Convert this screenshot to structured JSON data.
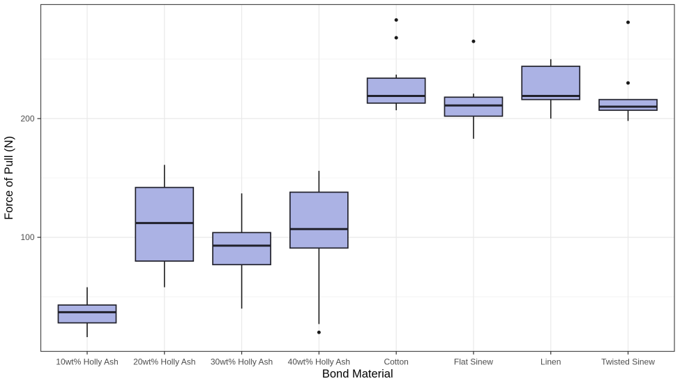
{
  "chart_data": {
    "type": "boxplot",
    "title": "",
    "xlabel": "Bond Material",
    "ylabel": "Force of Pull (N)",
    "categories": [
      "10wt% Holly Ash",
      "20wt% Holly Ash",
      "30wt% Holly Ash",
      "40wt% Holly Ash",
      "Cotton",
      "Flat Sinew",
      "Linen",
      "Twisted Sinew"
    ],
    "y_axis": {
      "major_ticks": [
        100,
        200
      ],
      "minor_gridlines": [
        50,
        150,
        250
      ],
      "range": [
        4,
        296
      ]
    },
    "boxes": [
      {
        "category": "10wt% Holly Ash",
        "whisker_low": 16,
        "q1": 28,
        "median": 37,
        "q3": 43,
        "whisker_high": 58,
        "outliers": []
      },
      {
        "category": "20wt% Holly Ash",
        "whisker_low": 58,
        "q1": 80,
        "median": 112,
        "q3": 142,
        "whisker_high": 161,
        "outliers": []
      },
      {
        "category": "30wt% Holly Ash",
        "whisker_low": 40,
        "q1": 77,
        "median": 93,
        "q3": 104,
        "whisker_high": 137,
        "outliers": []
      },
      {
        "category": "40wt% Holly Ash",
        "whisker_low": 27,
        "q1": 91,
        "median": 107,
        "q3": 138,
        "whisker_high": 156,
        "outliers": [
          20
        ]
      },
      {
        "category": "Cotton",
        "whisker_low": 207,
        "q1": 213,
        "median": 219,
        "q3": 234,
        "whisker_high": 237,
        "outliers": [
          268,
          283
        ]
      },
      {
        "category": "Flat Sinew",
        "whisker_low": 183,
        "q1": 202,
        "median": 211,
        "q3": 218,
        "whisker_high": 221,
        "outliers": [
          265
        ]
      },
      {
        "category": "Linen",
        "whisker_low": 200,
        "q1": 216,
        "median": 219,
        "q3": 244,
        "whisker_high": 250,
        "outliers": []
      },
      {
        "category": "Twisted Sinew",
        "whisker_low": 198,
        "q1": 207,
        "median": 210,
        "q3": 216,
        "whisker_high": 216,
        "outliers": [
          230,
          281
        ]
      }
    ],
    "style": {
      "box_fill": "#abb2e4",
      "box_stroke": "#21212b",
      "median_color": "#21212b",
      "whisker_color": "#1a1a1a",
      "outlier_color": "#1a1a1a",
      "grid_major": "#e9e9e9",
      "grid_minor": "#f4f4f4",
      "panel_border": "#4a4a4a",
      "tick_color": "#333333",
      "background": "#ffffff"
    },
    "layout_hints": {
      "grid": "on",
      "legend": "none",
      "orientation": "vertical"
    }
  }
}
